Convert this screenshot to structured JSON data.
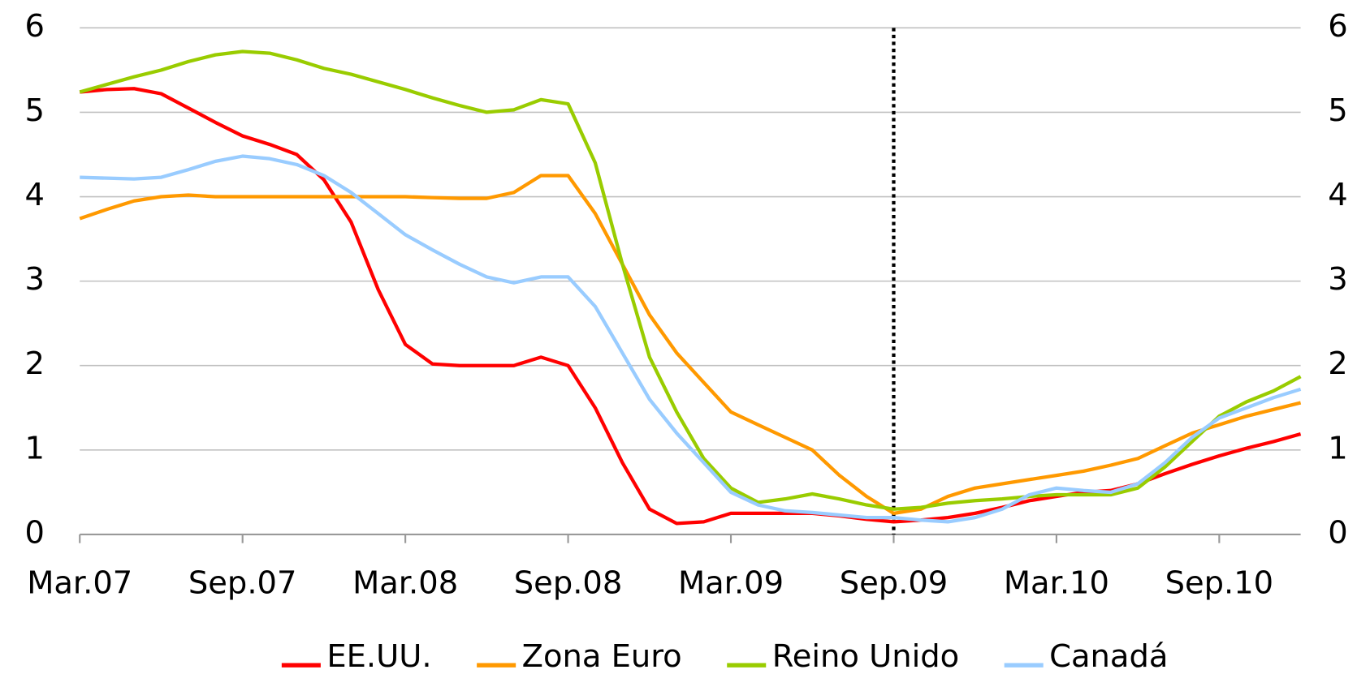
{
  "chart_data": {
    "type": "line",
    "categories": [
      "Mar.07",
      null,
      null,
      null,
      null,
      null,
      "Sep.07",
      null,
      null,
      null,
      null,
      null,
      "Mar.08",
      null,
      null,
      null,
      null,
      null,
      "Sep.08",
      null,
      null,
      null,
      null,
      null,
      "Mar.09",
      null,
      null,
      null,
      null,
      null,
      "Sep.09",
      null,
      null,
      null,
      null,
      null,
      "Mar.10",
      null,
      null,
      null,
      null,
      null,
      "Sep.10",
      null,
      null,
      null
    ],
    "series": [
      {
        "name": "EE.UU.",
        "color": "#ff0000",
        "values": [
          5.24,
          5.27,
          5.28,
          5.22,
          5.05,
          4.88,
          4.72,
          4.62,
          4.5,
          4.2,
          3.7,
          2.9,
          2.25,
          2.02,
          2.0,
          2.0,
          2.0,
          2.1,
          2.0,
          1.5,
          0.85,
          0.3,
          0.13,
          0.15,
          0.25,
          0.25,
          0.25,
          0.25,
          0.22,
          0.18,
          0.15,
          0.17,
          0.2,
          0.25,
          0.32,
          0.4,
          0.45,
          0.5,
          0.52,
          0.6,
          0.72,
          0.83,
          0.93,
          1.02,
          1.1,
          1.19
        ]
      },
      {
        "name": "Zona Euro",
        "color": "#ff9900",
        "values": [
          3.74,
          3.85,
          3.95,
          4.0,
          4.02,
          4.0,
          4.0,
          4.0,
          4.0,
          4.0,
          4.0,
          4.0,
          4.0,
          3.99,
          3.98,
          3.98,
          4.05,
          4.25,
          4.25,
          3.8,
          3.2,
          2.6,
          2.15,
          1.8,
          1.45,
          1.3,
          1.15,
          1.0,
          0.7,
          0.45,
          0.25,
          0.3,
          0.45,
          0.55,
          0.6,
          0.65,
          0.7,
          0.75,
          0.82,
          0.9,
          1.05,
          1.2,
          1.3,
          1.4,
          1.48,
          1.56
        ]
      },
      {
        "name": "Reino Unido",
        "color": "#99cc00",
        "values": [
          5.24,
          5.33,
          5.42,
          5.5,
          5.6,
          5.68,
          5.72,
          5.7,
          5.62,
          5.52,
          5.45,
          5.36,
          5.27,
          5.17,
          5.08,
          5.0,
          5.03,
          5.15,
          5.1,
          4.4,
          3.2,
          2.1,
          1.45,
          0.9,
          0.55,
          0.38,
          0.42,
          0.48,
          0.42,
          0.35,
          0.3,
          0.32,
          0.37,
          0.4,
          0.42,
          0.45,
          0.47,
          0.47,
          0.47,
          0.55,
          0.8,
          1.1,
          1.4,
          1.57,
          1.7,
          1.87
        ]
      },
      {
        "name": "Canadá",
        "color": "#99ccff",
        "values": [
          4.23,
          4.22,
          4.21,
          4.23,
          4.32,
          4.42,
          4.48,
          4.45,
          4.38,
          4.25,
          4.05,
          3.8,
          3.55,
          3.37,
          3.2,
          3.05,
          2.98,
          3.05,
          3.05,
          2.7,
          2.15,
          1.6,
          1.2,
          0.85,
          0.5,
          0.35,
          0.28,
          0.26,
          0.23,
          0.2,
          0.2,
          0.17,
          0.15,
          0.2,
          0.3,
          0.47,
          0.55,
          0.52,
          0.5,
          0.6,
          0.85,
          1.15,
          1.38,
          1.5,
          1.62,
          1.72
        ]
      }
    ],
    "ylim": [
      0,
      6
    ],
    "yticks": [
      0,
      1,
      2,
      3,
      4,
      5,
      6
    ],
    "y2lim": [
      0,
      6
    ],
    "y2ticks": [
      0,
      1,
      2,
      3,
      4,
      5,
      6
    ],
    "grid": true,
    "legend": "bottom",
    "vline_category_index": 30
  }
}
